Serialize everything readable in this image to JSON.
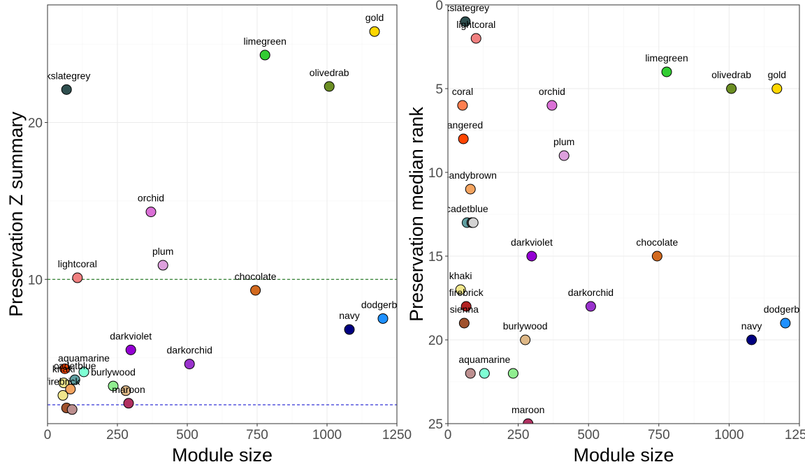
{
  "chart_data": [
    {
      "type": "scatter",
      "xlabel": "Module size",
      "ylabel": "Preservation Z summary",
      "xlim": [
        0,
        1250
      ],
      "ylim": [
        0.8,
        27.5
      ],
      "y_reversed": false,
      "x_ticks": [
        0,
        250,
        500,
        750,
        1000,
        1250
      ],
      "x_tick_labels": [
        "0",
        "250",
        "500",
        "750",
        "1000",
        "1250"
      ],
      "y_ticks": [
        10,
        20
      ],
      "y_tick_labels": [
        "10",
        "20"
      ],
      "grid": true,
      "reference_lines": [
        {
          "y": 10,
          "color": "#006400",
          "style": "dashed"
        },
        {
          "y": 2,
          "color": "#0000cd",
          "style": "dashed"
        }
      ],
      "points": [
        {
          "label": "gold",
          "x": 1170,
          "y": 25.8,
          "color": "#FFD700"
        },
        {
          "label": "limegreen",
          "x": 778,
          "y": 24.3,
          "color": "#32CD32"
        },
        {
          "label": "olivedrab",
          "x": 1008,
          "y": 22.3,
          "color": "#6B8E23"
        },
        {
          "label": "rkslategrey",
          "x": 68,
          "y": 22.1,
          "color": "#2F4F4F"
        },
        {
          "label": "orchid",
          "x": 370,
          "y": 14.3,
          "color": "#DA70D6"
        },
        {
          "label": "plum",
          "x": 413,
          "y": 10.9,
          "color": "#DDA0DD"
        },
        {
          "label": "lightcoral",
          "x": 107,
          "y": 10.1,
          "color": "#F08080"
        },
        {
          "label": "chocolate",
          "x": 744,
          "y": 9.3,
          "color": "#D2691E"
        },
        {
          "label": "dodgerblu",
          "x": 1200,
          "y": 7.5,
          "color": "#1E90FF"
        },
        {
          "label": "navy",
          "x": 1080,
          "y": 6.8,
          "color": "#000080"
        },
        {
          "label": "darkviolet",
          "x": 298,
          "y": 5.5,
          "color": "#9400D3"
        },
        {
          "label": "darkorchid",
          "x": 508,
          "y": 4.6,
          "color": "#9932CC"
        },
        {
          "label": "aquamarine",
          "x": 130,
          "y": 4.1,
          "color": "#7FFFD4"
        },
        {
          "label": "",
          "x": 62,
          "y": 4.3,
          "color": "#FF4500"
        },
        {
          "label": "cadetblue",
          "x": 98,
          "y": 3.6,
          "color": "#5F9EA0"
        },
        {
          "label": "khaki",
          "x": 58,
          "y": 3.4,
          "color": "#F0E68C"
        },
        {
          "label": "",
          "x": 82,
          "y": 3.0,
          "color": "#F4A460"
        },
        {
          "label": "burlywood",
          "x": 235,
          "y": 3.2,
          "color": "#90EE90"
        },
        {
          "label": "",
          "x": 280,
          "y": 2.9,
          "color": "#DEB887"
        },
        {
          "label": "maroon",
          "x": 290,
          "y": 2.1,
          "color": "#B03060"
        },
        {
          "label": "firebrick",
          "x": 55,
          "y": 2.6,
          "color": "#F0E68C"
        },
        {
          "label": "",
          "x": 68,
          "y": 1.8,
          "color": "#A0522D"
        },
        {
          "label": "",
          "x": 88,
          "y": 1.7,
          "color": "#BC8F8F"
        }
      ]
    },
    {
      "type": "scatter",
      "xlabel": "Module size",
      "ylabel": "Preservation median rank",
      "xlim": [
        0,
        1250
      ],
      "ylim": [
        0,
        25
      ],
      "y_reversed": true,
      "x_ticks": [
        0,
        250,
        500,
        750,
        1000,
        1250
      ],
      "x_tick_labels": [
        "0",
        "250",
        "500",
        "750",
        "1000",
        "1250"
      ],
      "y_ticks": [
        0,
        5,
        10,
        15,
        20,
        25
      ],
      "y_tick_labels": [
        "0",
        "5",
        "10",
        "15",
        "20",
        "25"
      ],
      "grid": true,
      "reference_lines": [],
      "points": [
        {
          "label": "rkslategrey",
          "x": 62,
          "y": 1,
          "color": "#2F4F4F"
        },
        {
          "label": "lightcoral",
          "x": 100,
          "y": 2,
          "color": "#F08080"
        },
        {
          "label": "limegreen",
          "x": 778,
          "y": 4,
          "color": "#32CD32"
        },
        {
          "label": "olivedrab",
          "x": 1008,
          "y": 5,
          "color": "#6B8E23"
        },
        {
          "label": "gold",
          "x": 1170,
          "y": 5,
          "color": "#FFD700"
        },
        {
          "label": "coral",
          "x": 52,
          "y": 6,
          "color": "#FF7F50"
        },
        {
          "label": "orchid",
          "x": 370,
          "y": 6,
          "color": "#DA70D6"
        },
        {
          "label": "rangered",
          "x": 55,
          "y": 8,
          "color": "#FF4500"
        },
        {
          "label": "plum",
          "x": 413,
          "y": 9,
          "color": "#DDA0DD"
        },
        {
          "label": "sandybrown",
          "x": 80,
          "y": 11,
          "color": "#F4A460"
        },
        {
          "label": "cadetblue",
          "x": 68,
          "y": 13,
          "color": "#5F9EA0"
        },
        {
          "label": "",
          "x": 85,
          "y": 13,
          "color": "#4D4D4D"
        },
        {
          "label": "",
          "x": 90,
          "y": 13,
          "color": "#D3D3D3"
        },
        {
          "label": "darkviolet",
          "x": 298,
          "y": 15,
          "color": "#9400D3"
        },
        {
          "label": "chocolate",
          "x": 744,
          "y": 15,
          "color": "#D2691E"
        },
        {
          "label": "khaki",
          "x": 45,
          "y": 17,
          "color": "#F0E68C"
        },
        {
          "label": "firebrick",
          "x": 65,
          "y": 18,
          "color": "#B22222"
        },
        {
          "label": "darkorchid",
          "x": 508,
          "y": 18,
          "color": "#9932CC"
        },
        {
          "label": "sienna",
          "x": 58,
          "y": 19,
          "color": "#A0522D"
        },
        {
          "label": "dodgerblu",
          "x": 1200,
          "y": 19,
          "color": "#1E90FF"
        },
        {
          "label": "burlywood",
          "x": 275,
          "y": 20,
          "color": "#DEB887"
        },
        {
          "label": "navy",
          "x": 1080,
          "y": 20,
          "color": "#000080"
        },
        {
          "label": "",
          "x": 80,
          "y": 22,
          "color": "#BC8F8F"
        },
        {
          "label": "aquamarine",
          "x": 130,
          "y": 22,
          "color": "#7FFFD4"
        },
        {
          "label": "",
          "x": 232,
          "y": 22,
          "color": "#90EE90"
        },
        {
          "label": "maroon",
          "x": 285,
          "y": 25,
          "color": "#B03060"
        }
      ]
    }
  ]
}
